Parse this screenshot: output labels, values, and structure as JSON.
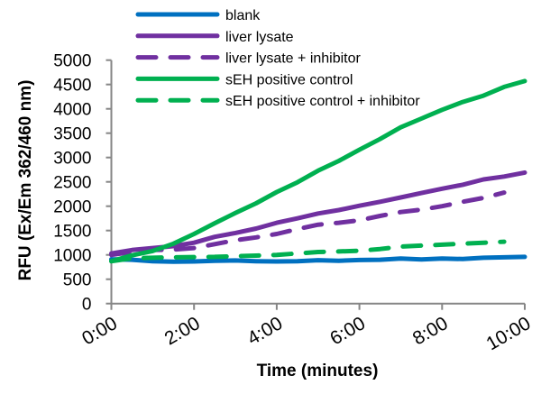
{
  "chart_data": {
    "type": "line",
    "title": "",
    "xlabel": "Time (minutes)",
    "ylabel": "RFU (Ex/Em 362/460 nm)",
    "xlim": [
      0,
      10
    ],
    "ylim": [
      0,
      5000
    ],
    "x_ticks": [
      0,
      2,
      4,
      6,
      8,
      10
    ],
    "x_tick_labels": [
      "0:00",
      "2:00",
      "4:00",
      "6:00",
      "8:00",
      "10:00"
    ],
    "y_ticks": [
      0,
      500,
      1000,
      1500,
      2000,
      2500,
      3000,
      3500,
      4000,
      4500,
      5000
    ],
    "y_tick_labels": [
      "0",
      "500",
      "1000",
      "1500",
      "2000",
      "2500",
      "3000",
      "3500",
      "4000",
      "4500",
      "5000"
    ],
    "grid": false,
    "legend_position": "top",
    "series": [
      {
        "name": "blank",
        "color": "#0070C0",
        "dash": false,
        "x": [
          0,
          0.5,
          1,
          1.5,
          2,
          2.5,
          3,
          3.5,
          4,
          4.5,
          5,
          5.5,
          6,
          6.5,
          7,
          7.5,
          8,
          8.5,
          9,
          9.5,
          10
        ],
        "y": [
          910,
          900,
          870,
          860,
          865,
          880,
          885,
          870,
          865,
          870,
          890,
          880,
          895,
          900,
          925,
          905,
          925,
          915,
          940,
          950,
          960
        ]
      },
      {
        "name": "liver lysate",
        "color": "#7030A0",
        "dash": false,
        "x": [
          0,
          0.5,
          1,
          1.5,
          2,
          2.5,
          3,
          3.5,
          4,
          4.5,
          5,
          5.5,
          6,
          6.5,
          7,
          7.5,
          8,
          8.5,
          9,
          9.5,
          10
        ],
        "y": [
          1030,
          1100,
          1140,
          1180,
          1250,
          1370,
          1450,
          1540,
          1660,
          1750,
          1850,
          1920,
          2010,
          2090,
          2180,
          2270,
          2360,
          2440,
          2550,
          2610,
          2690
        ]
      },
      {
        "name": "liver lysate + inhibitor",
        "color": "#7030A0",
        "dash": true,
        "x": [
          0,
          0.5,
          1,
          1.5,
          2,
          2.5,
          3,
          3.5,
          4,
          4.5,
          5,
          5.5,
          6,
          6.5,
          7,
          7.5,
          8,
          8.5,
          9,
          9.5
        ],
        "y": [
          1000,
          1060,
          1100,
          1110,
          1140,
          1220,
          1300,
          1360,
          1430,
          1530,
          1620,
          1660,
          1710,
          1800,
          1880,
          1930,
          2000,
          2090,
          2170,
          2280
        ]
      },
      {
        "name": "sEH positive control",
        "color": "#00B050",
        "dash": false,
        "x": [
          0,
          0.5,
          1,
          1.5,
          2,
          2.5,
          3,
          3.5,
          4,
          4.5,
          5,
          5.5,
          6,
          6.5,
          7,
          7.5,
          8,
          8.5,
          9,
          9.5,
          10
        ],
        "y": [
          870,
          990,
          1080,
          1230,
          1430,
          1650,
          1860,
          2060,
          2290,
          2490,
          2730,
          2930,
          3160,
          3380,
          3620,
          3800,
          3980,
          4140,
          4270,
          4450,
          4570
        ]
      },
      {
        "name": "sEH positive control + inhibitor",
        "color": "#00B050",
        "dash": true,
        "x": [
          0,
          0.5,
          1,
          1.5,
          2,
          2.5,
          3,
          3.5,
          4,
          4.5,
          5,
          5.5,
          6,
          6.5,
          7,
          7.5,
          8,
          8.5,
          9,
          9.5
        ],
        "y": [
          870,
          930,
          940,
          950,
          955,
          960,
          975,
          985,
          1000,
          1030,
          1060,
          1070,
          1085,
          1120,
          1170,
          1190,
          1210,
          1230,
          1250,
          1270
        ]
      }
    ]
  }
}
